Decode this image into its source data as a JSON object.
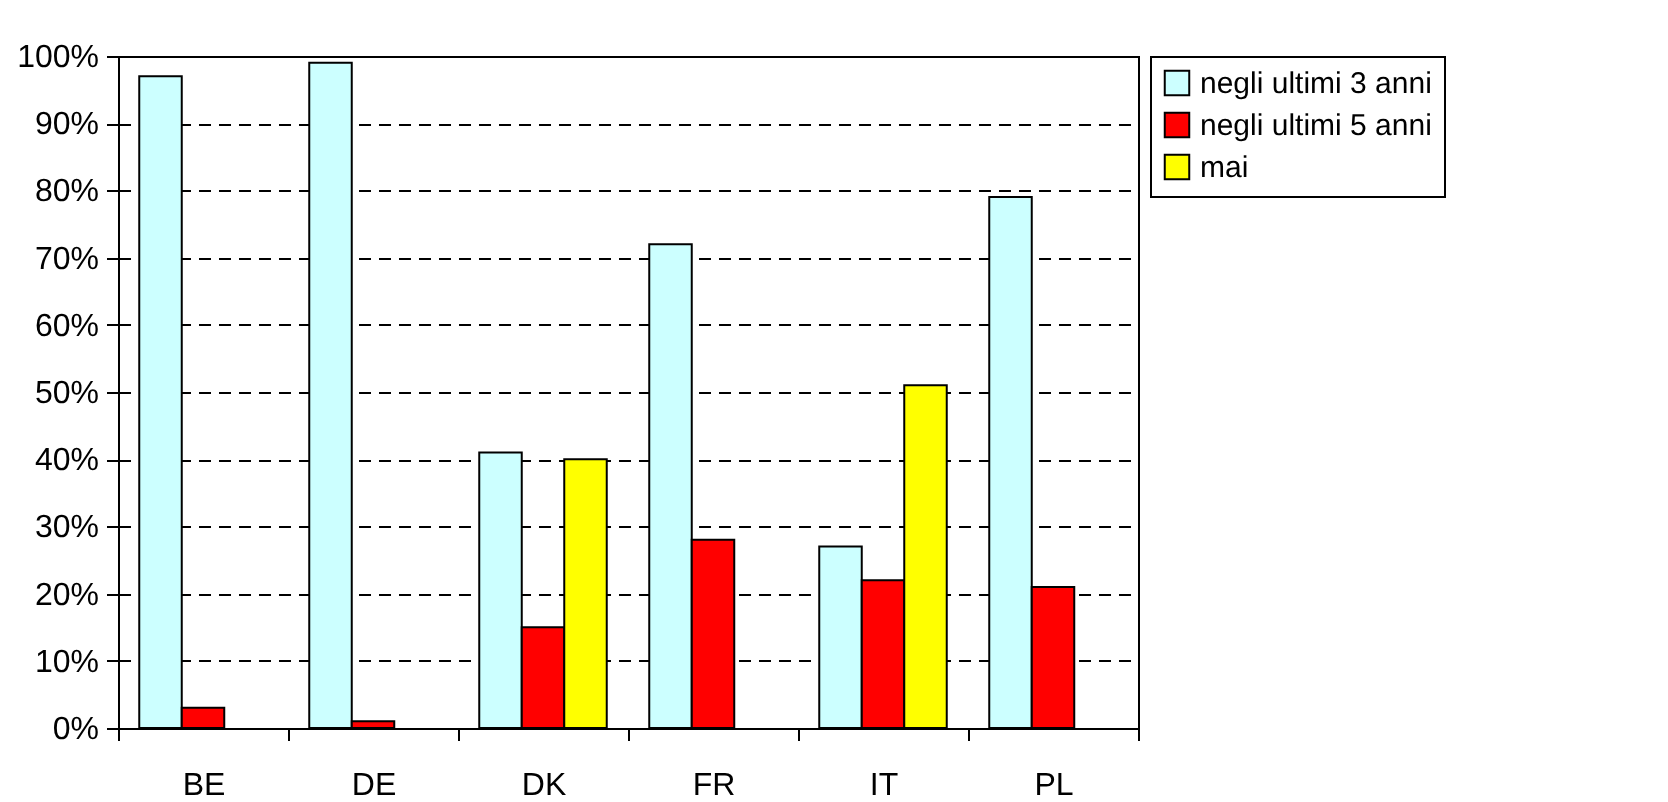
{
  "chart_data": {
    "type": "bar",
    "categories": [
      "BE",
      "DE",
      "DK",
      "FR",
      "IT",
      "PL"
    ],
    "series": [
      {
        "name": "negli ultimi 3 anni",
        "color": "#ccffff",
        "values": [
          97,
          99,
          41,
          72,
          27,
          79
        ]
      },
      {
        "name": "negli ultimi 5 anni",
        "color": "#ff0000",
        "values": [
          3,
          1,
          15,
          28,
          22,
          21
        ]
      },
      {
        "name": "mai",
        "color": "#ffff00",
        "values": [
          null,
          null,
          40,
          null,
          51,
          null
        ]
      }
    ],
    "ylim": [
      0,
      100
    ],
    "yticks": [
      {
        "value": 0,
        "label": "0%"
      },
      {
        "value": 10,
        "label": "10%"
      },
      {
        "value": 20,
        "label": "20%"
      },
      {
        "value": 30,
        "label": "30%"
      },
      {
        "value": 40,
        "label": "40%"
      },
      {
        "value": 50,
        "label": "50%"
      },
      {
        "value": 60,
        "label": "60%"
      },
      {
        "value": 70,
        "label": "70%"
      },
      {
        "value": 80,
        "label": "80%"
      },
      {
        "value": 90,
        "label": "90%"
      },
      {
        "value": 100,
        "label": "100%"
      }
    ],
    "grid": "y",
    "legend": "right"
  }
}
